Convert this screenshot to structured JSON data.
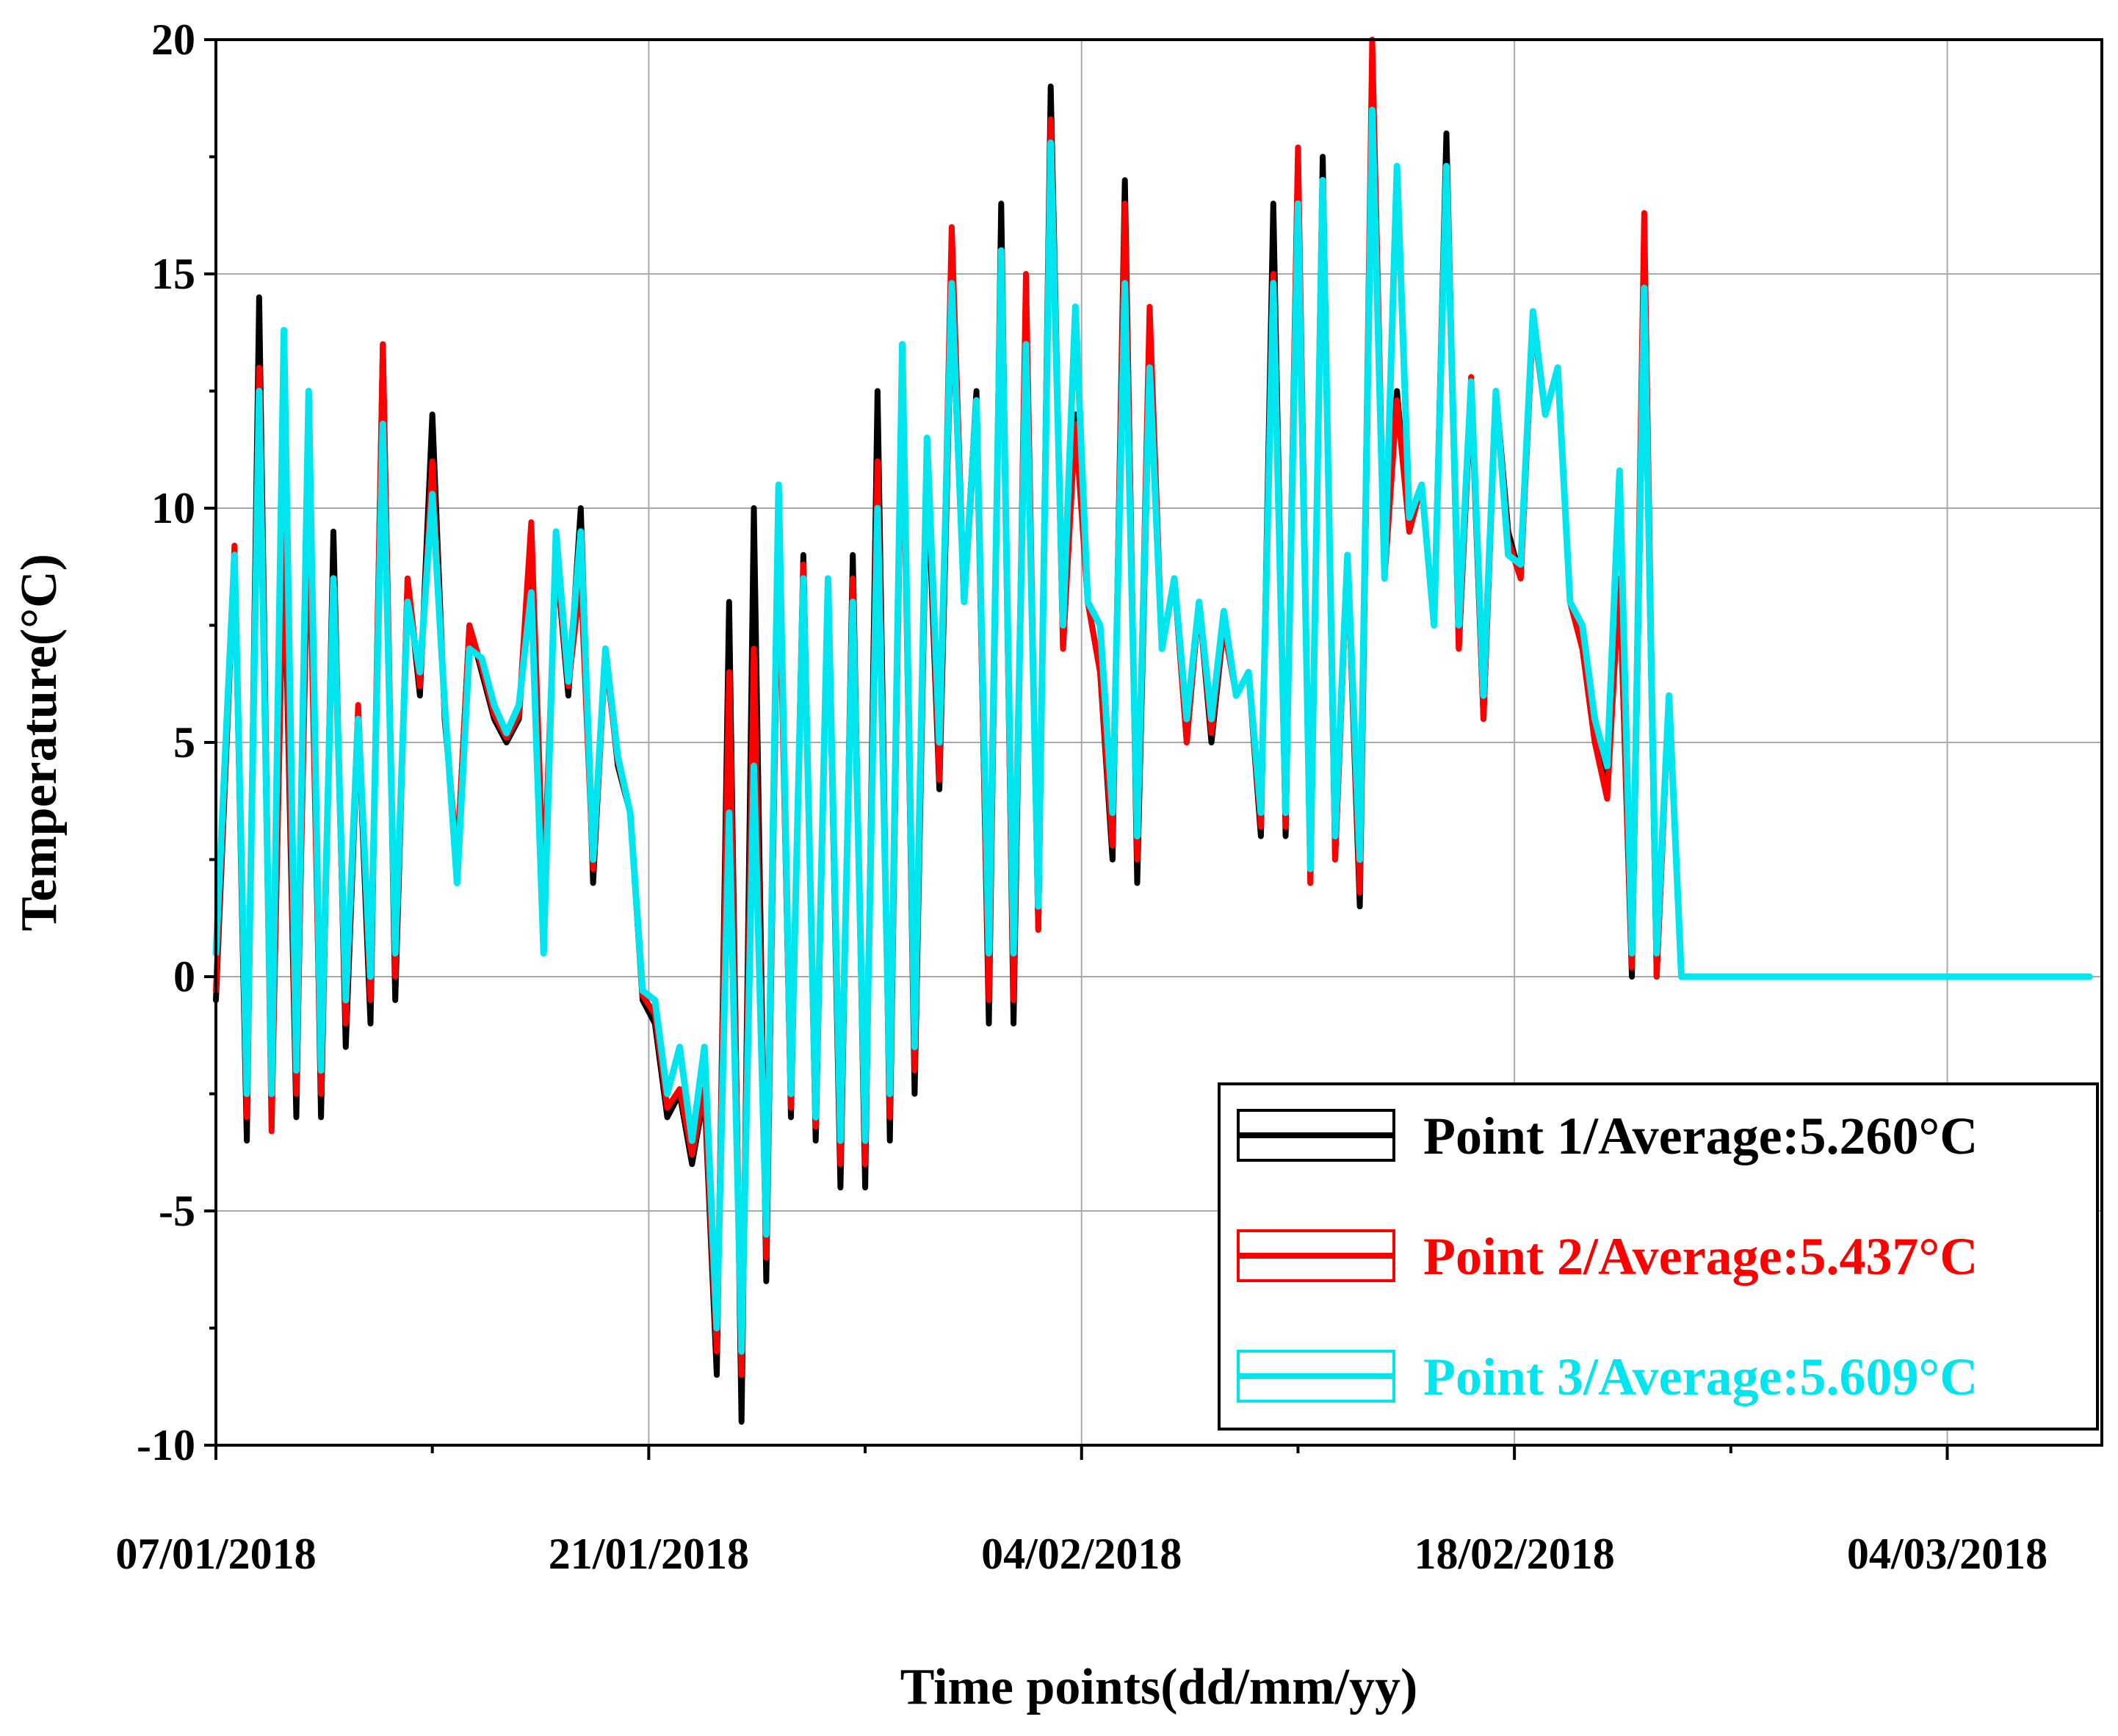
{
  "chart_data": {
    "type": "line",
    "title": "",
    "xlabel": "Time points(dd/mm/yy)",
    "ylabel": "Temperature(°C)",
    "ylim": [
      -10,
      20
    ],
    "xlim": [
      0,
      61
    ],
    "yticks": [
      -10,
      -5,
      0,
      5,
      10,
      15,
      20
    ],
    "ytick_labels": [
      "-10",
      "-5",
      "0",
      "5",
      "10",
      "15",
      "20"
    ],
    "xticks": [
      0,
      14,
      28,
      42,
      56
    ],
    "xtick_labels": [
      "07/01/2018",
      "21/01/2018",
      "04/02/2018",
      "18/02/2018",
      "04/03/2018"
    ],
    "grid": true,
    "legend_position": "bottom-right",
    "x_unit": "days since 07/01/2018",
    "x": [
      0,
      0.6,
      1.0,
      1.4,
      1.8,
      2.2,
      2.6,
      3.0,
      3.4,
      3.8,
      4.2,
      4.6,
      5.0,
      5.4,
      5.8,
      6.2,
      6.6,
      7.0,
      7.4,
      7.8,
      8.2,
      8.6,
      9.0,
      9.4,
      9.8,
      10.2,
      10.6,
      11.0,
      11.4,
      11.8,
      12.2,
      12.6,
      13.0,
      13.4,
      13.8,
      14.2,
      14.6,
      15.0,
      15.4,
      15.8,
      16.2,
      16.6,
      17.0,
      17.4,
      17.8,
      18.2,
      18.6,
      19.0,
      19.4,
      19.8,
      20.2,
      20.6,
      21.0,
      21.4,
      21.8,
      22.2,
      22.6,
      23.0,
      23.4,
      23.8,
      24.2,
      24.6,
      25.0,
      25.4,
      25.8,
      26.2,
      26.6,
      27.0,
      27.4,
      27.8,
      28.2,
      28.6,
      29.0,
      29.4,
      29.8,
      30.2,
      30.6,
      31.0,
      31.4,
      31.8,
      32.2,
      32.6,
      33.0,
      33.4,
      33.8,
      34.2,
      34.6,
      35.0,
      35.4,
      35.8,
      36.2,
      36.6,
      37.0,
      37.4,
      37.8,
      38.2,
      38.6,
      39.0,
      39.4,
      39.8,
      40.2,
      40.6,
      41.0,
      41.4,
      41.8,
      42.2,
      42.6,
      43.0,
      43.4,
      43.8,
      44.2,
      44.6,
      45.0,
      45.4,
      45.8,
      46.2,
      46.6,
      47.0,
      47.4,
      47.8,
      48.2,
      48.6,
      49.0,
      49.4,
      49.8,
      50.2,
      50.6,
      51.0,
      51.4,
      51.8,
      52.2,
      52.6,
      53.0,
      53.4,
      53.8,
      54.2,
      54.6,
      55.0,
      55.4,
      55.8,
      56.2,
      56.6,
      57.0,
      57.4,
      57.8,
      58.2,
      58.6,
      59.0,
      59.4,
      59.8,
      60.2,
      60.6
    ],
    "series": [
      {
        "name": "Point 1/Average:5.260°C",
        "color": "#000000",
        "values": [
          -0.5,
          9.0,
          -3.5,
          14.5,
          -3.0,
          9.5,
          -3.0,
          12.0,
          -3.0,
          9.5,
          -1.5,
          5.5,
          -1.0,
          13.5,
          -0.5,
          8.5,
          6.0,
          12.0,
          5.5,
          2.5,
          7.5,
          6.5,
          5.5,
          5.0,
          5.5,
          9.5,
          1.5,
          9.0,
          6.0,
          10.0,
          2.0,
          7.0,
          4.5,
          3.5,
          -0.5,
          -1.0,
          -3.0,
          -2.5,
          -4.0,
          -2.5,
          -8.5,
          8.0,
          -9.5,
          10.0,
          -6.5,
          10.0,
          -3.0,
          9.0,
          -3.5,
          8.5,
          -4.5,
          9.0,
          -4.5,
          12.5,
          -3.5,
          13.5,
          -2.5,
          11.0,
          4.0,
          14.5,
          8.0,
          12.5,
          -1.0,
          16.5,
          -1.0,
          14.5,
          1.0,
          19.0,
          7.0,
          12.0,
          8.0,
          6.5,
          2.5,
          17.0,
          2.0,
          13.0,
          7.0,
          8.5,
          5.0,
          8.0,
          5.0,
          7.5,
          6.0,
          6.5,
          3.0,
          16.5,
          3.0,
          17.5,
          2.0,
          17.5,
          2.5,
          9.0,
          1.5,
          18.5,
          8.5,
          12.5,
          9.5,
          10.5,
          7.5,
          18.0,
          7.0,
          12.5,
          5.5,
          12.5,
          9.5,
          8.5,
          14.0,
          12.0,
          13.0,
          8.0,
          7.0,
          5.0,
          4.0,
          8.5,
          0.0,
          14.5,
          0.0,
          6.0,
          0.0,
          0.0,
          0.0,
          0.0,
          0.0,
          0.0,
          0.0,
          0.0,
          0.0,
          0.0,
          0.0,
          0.0,
          0.0,
          0.0,
          0.0,
          0.0,
          0.0,
          0.0,
          0.0,
          0.0,
          0.0,
          0.0,
          0.0,
          0.0,
          0.0,
          0.0,
          0.0,
          0.0,
          0.0,
          0.0,
          0.0,
          0.0,
          0.0,
          0.0
        ]
      },
      {
        "name": "Point 2/Average:5.437°C",
        "color": "#ff0000",
        "values": [
          -0.3,
          9.2,
          -3.0,
          13.0,
          -3.3,
          9.8,
          -2.5,
          10.3,
          -2.5,
          8.5,
          -1.0,
          5.8,
          -0.5,
          13.5,
          0.0,
          8.5,
          6.2,
          11.0,
          5.6,
          2.5,
          7.5,
          6.6,
          5.6,
          5.1,
          5.6,
          9.7,
          1.8,
          9.0,
          6.2,
          8.5,
          2.3,
          6.8,
          4.6,
          3.5,
          -0.4,
          -0.8,
          -2.8,
          -2.4,
          -3.8,
          -2.4,
          -8.0,
          6.5,
          -8.5,
          7.0,
          -6.0,
          9.5,
          -2.8,
          8.8,
          -3.2,
          8.5,
          -4.0,
          8.5,
          -4.0,
          11.0,
          -3.0,
          12.8,
          -2.0,
          11.5,
          4.2,
          16.0,
          8.0,
          12.0,
          -0.5,
          15.5,
          -0.5,
          15.0,
          1.0,
          18.3,
          7.0,
          11.8,
          8.0,
          6.5,
          2.8,
          16.5,
          2.5,
          14.3,
          7.0,
          8.5,
          5.0,
          8.0,
          5.2,
          7.5,
          6.0,
          6.5,
          3.2,
          15.0,
          3.2,
          17.7,
          2.0,
          17.0,
          2.5,
          9.0,
          1.8,
          20.0,
          8.5,
          12.3,
          9.5,
          10.5,
          7.5,
          17.3,
          7.0,
          12.8,
          5.5,
          12.5,
          9.3,
          8.5,
          14.0,
          12.0,
          13.0,
          8.0,
          7.0,
          5.0,
          3.8,
          8.5,
          0.2,
          16.3,
          0.0,
          6.0,
          0.0,
          0.0,
          0.0,
          0.0,
          0.0,
          0.0,
          0.0,
          0.0,
          0.0,
          0.0,
          0.0,
          0.0,
          0.0,
          0.0,
          0.0,
          0.0,
          0.0,
          0.0,
          0.0,
          0.0,
          0.0,
          0.0,
          0.0,
          0.0,
          0.0,
          0.0,
          0.0,
          0.0,
          0.0,
          0.0,
          0.0,
          0.0,
          0.0,
          0.0
        ]
      },
      {
        "name": "Point 3/Average:5.609°C",
        "color": "#00e5ee",
        "values": [
          0.5,
          9.0,
          -2.5,
          12.5,
          -2.5,
          13.8,
          -2.0,
          12.5,
          -2.0,
          8.5,
          -0.5,
          5.5,
          0.0,
          11.8,
          0.5,
          8.0,
          6.5,
          10.3,
          5.8,
          2.0,
          7.0,
          6.8,
          5.8,
          5.2,
          5.8,
          8.2,
          0.5,
          9.5,
          6.3,
          9.5,
          2.5,
          7.0,
          4.7,
          3.5,
          -0.3,
          -0.5,
          -2.5,
          -1.5,
          -3.5,
          -1.5,
          -7.5,
          3.5,
          -8.0,
          4.5,
          -5.5,
          10.5,
          -2.5,
          8.5,
          -3.0,
          8.5,
          -3.5,
          8.0,
          -3.5,
          10.0,
          -2.5,
          13.5,
          -1.5,
          11.5,
          5.0,
          14.8,
          8.0,
          12.3,
          0.5,
          15.5,
          0.5,
          13.5,
          1.5,
          17.8,
          7.5,
          14.3,
          8.0,
          7.5,
          3.5,
          14.8,
          3.0,
          13.0,
          7.0,
          8.5,
          5.5,
          8.0,
          5.5,
          7.8,
          6.0,
          6.5,
          3.5,
          14.8,
          3.5,
          16.5,
          2.3,
          17.0,
          3.0,
          9.0,
          2.5,
          18.5,
          8.5,
          17.3,
          9.8,
          10.5,
          7.5,
          17.3,
          7.5,
          12.7,
          6.0,
          12.5,
          9.0,
          8.8,
          14.2,
          12.0,
          13.0,
          8.0,
          7.5,
          5.5,
          4.5,
          10.8,
          0.5,
          14.7,
          0.5,
          6.0,
          0.0,
          0.0,
          0.0,
          0.0,
          0.0,
          0.0,
          0.0,
          0.0,
          0.0,
          0.0,
          0.0,
          0.0,
          0.0,
          0.0,
          0.0,
          0.0,
          0.0,
          0.0,
          0.0,
          0.0,
          0.0,
          0.0,
          0.0,
          0.0,
          0.0,
          0.0,
          0.0,
          0.0,
          0.0,
          0.0,
          0.0,
          0.0,
          0.0,
          0.0
        ]
      }
    ]
  }
}
